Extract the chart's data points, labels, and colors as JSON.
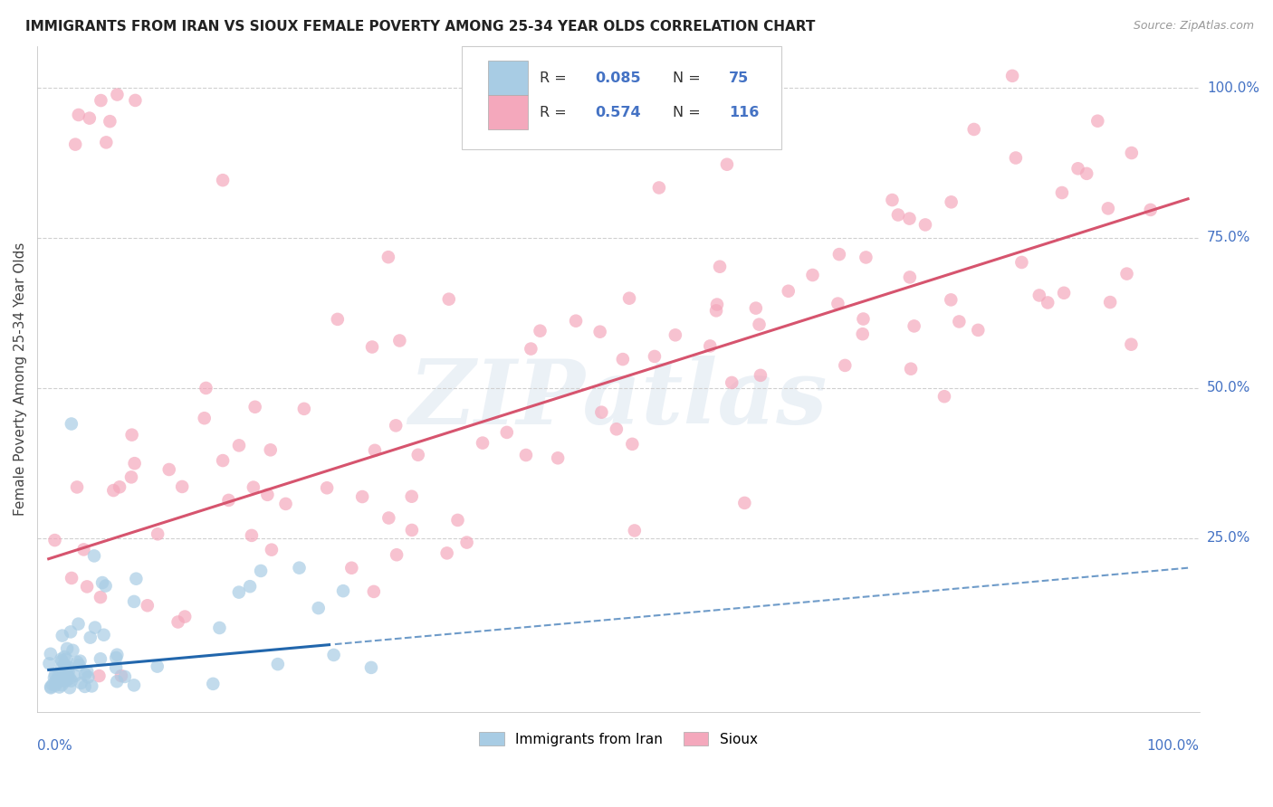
{
  "title": "IMMIGRANTS FROM IRAN VS SIOUX FEMALE POVERTY AMONG 25-34 YEAR OLDS CORRELATION CHART",
  "source": "Source: ZipAtlas.com",
  "ylabel": "Female Poverty Among 25-34 Year Olds",
  "watermark": "ZIPatlas",
  "legend_blue_r": "0.085",
  "legend_blue_n": "75",
  "legend_pink_r": "0.574",
  "legend_pink_n": "116",
  "legend_label_blue": "Immigrants from Iran",
  "legend_label_pink": "Sioux",
  "blue_color": "#a8cce4",
  "pink_color": "#f4a8bc",
  "blue_line_color": "#2166ac",
  "pink_line_color": "#d6546e",
  "r_n_color": "#4472c4",
  "background_color": "#ffffff",
  "blue_n": 75,
  "pink_n": 116,
  "blue_R": 0.085,
  "pink_R": 0.574,
  "pink_intercept": 0.215,
  "pink_slope": 0.6,
  "blue_intercept": 0.03,
  "blue_slope": 0.17
}
